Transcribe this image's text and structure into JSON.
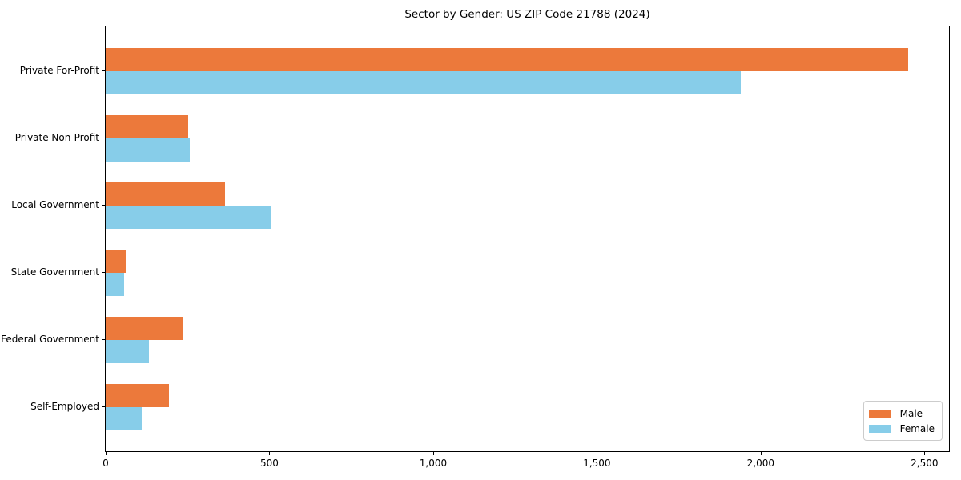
{
  "chart_data": {
    "type": "bar",
    "orientation": "horizontal",
    "title": "Sector by Gender: US ZIP Code 21788 (2024)",
    "xlabel": "",
    "ylabel": "",
    "categories": [
      "Private For-Profit",
      "Private Non-Profit",
      "Local Government",
      "State Government",
      "Federal Government",
      "Self-Employed"
    ],
    "series": [
      {
        "name": "Male",
        "color": "#EC793B",
        "values": [
          2450,
          253,
          365,
          60,
          234,
          193
        ]
      },
      {
        "name": "Female",
        "color": "#87CDE9",
        "values": [
          1940,
          257,
          503,
          56,
          132,
          110
        ]
      }
    ],
    "xlim": [
      0,
      2575
    ],
    "xticks": [
      0,
      500,
      1000,
      1500,
      2000,
      2500
    ],
    "xtick_labels": [
      "0",
      "500",
      "1,000",
      "1,500",
      "2,000",
      "2,500"
    ],
    "grid": false,
    "legend": {
      "position": "lower right",
      "items": [
        "Male",
        "Female"
      ]
    }
  }
}
